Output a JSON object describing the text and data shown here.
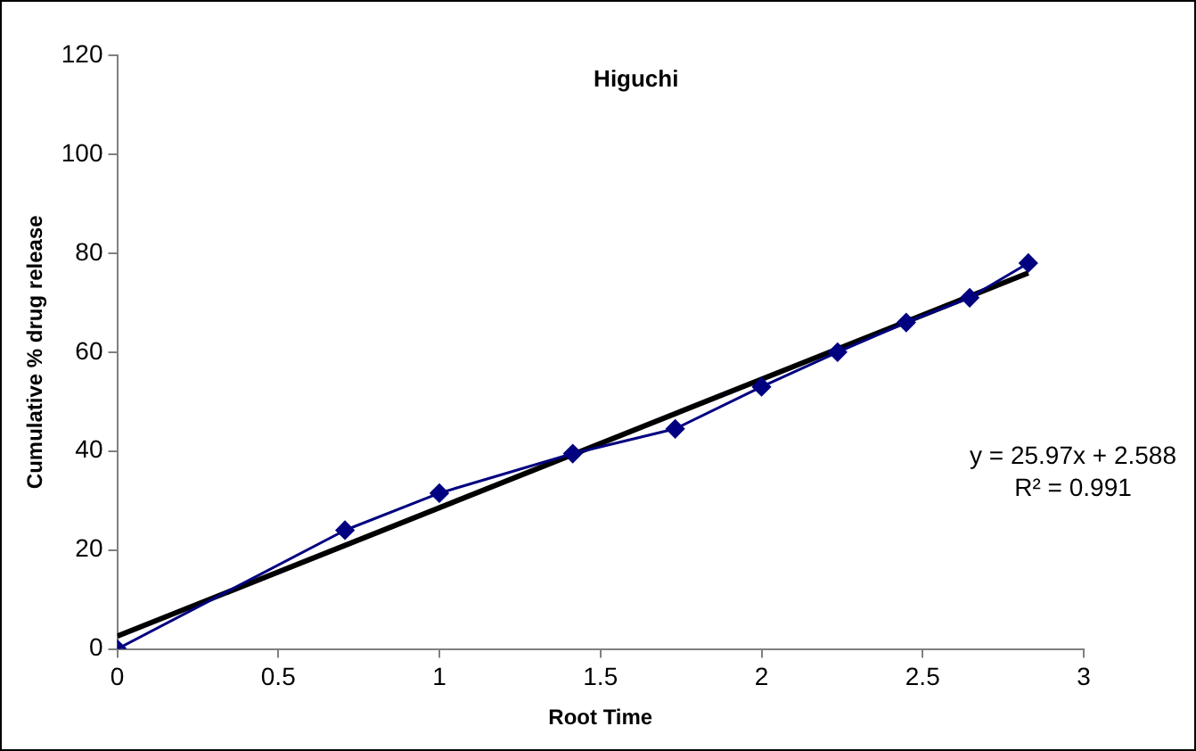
{
  "chart_data": {
    "type": "line",
    "title": "Higuchi",
    "xlabel": "Root Time",
    "ylabel": "Cumulative % drug release",
    "x": [
      0,
      0.707,
      1,
      1.414,
      1.732,
      2,
      2.236,
      2.449,
      2.646,
      2.828
    ],
    "series": [
      {
        "color": "#000080",
        "marker": "diamond",
        "values": [
          0,
          24,
          31.5,
          39.5,
          44.5,
          53,
          60,
          66,
          71,
          78
        ]
      },
      {
        "type": "line",
        "color": "#000000",
        "marker": "none",
        "x": [
          0,
          2.828
        ],
        "values": [
          2.6,
          76
        ]
      }
    ],
    "xlim": [
      0,
      3
    ],
    "xticks": [
      0,
      0.5,
      1,
      1.5,
      2,
      2.5,
      3
    ],
    "ylim": [
      0,
      120
    ],
    "yticks": [
      0,
      20,
      40,
      60,
      80,
      100,
      120
    ],
    "grid": false,
    "legend": false,
    "annotations": [
      "y = 25.97x + 2.588",
      "R² = 0.991"
    ]
  }
}
